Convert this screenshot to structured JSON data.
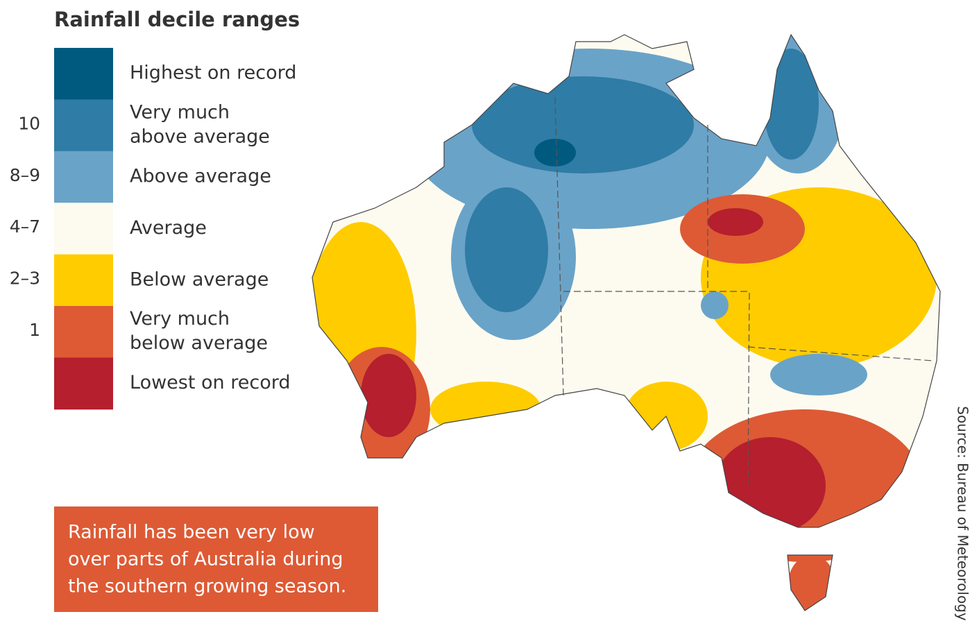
{
  "title": "Rainfall decile ranges",
  "legend": [
    {
      "label": [
        "Highest on record"
      ],
      "decile": null,
      "color": "#005a7f"
    },
    {
      "label": [
        "Very much",
        "above average"
      ],
      "decile": "10",
      "color": "#2f7ca6"
    },
    {
      "label": [
        "Above average"
      ],
      "decile": "8–9",
      "color": "#6aa3c8"
    },
    {
      "label": [
        "Average"
      ],
      "decile": "4–7",
      "color": "#fdfbef"
    },
    {
      "label": [
        "Below average"
      ],
      "decile": "2–3",
      "color": "#ffcc00"
    },
    {
      "label": [
        "Very much",
        "below average"
      ],
      "decile": "1",
      "color": "#dd5a35"
    },
    {
      "label": [
        "Lowest on record"
      ],
      "decile": null,
      "color": "#b51f2e"
    }
  ],
  "note": [
    "Rainfall has been very low",
    "over parts of Australia during",
    "the southern growing season."
  ],
  "source": "Source: Bureau of Meteorology"
}
